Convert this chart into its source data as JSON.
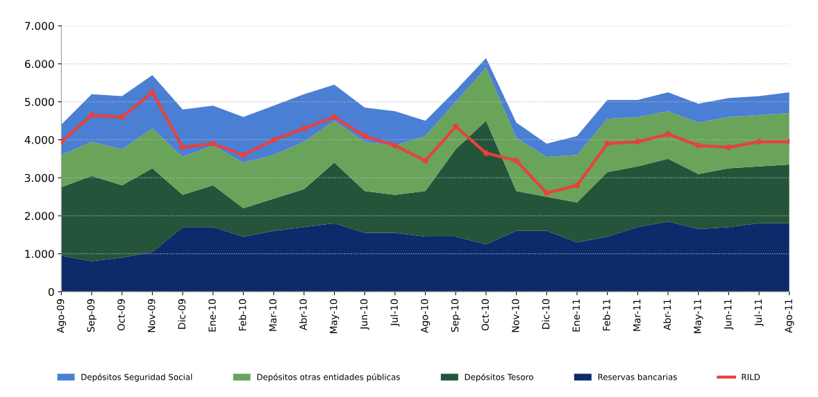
{
  "chart_data": {
    "type": "area",
    "stacked": true,
    "grid": "y",
    "legend": "bottom",
    "categories": [
      "Ago-09",
      "Sep-09",
      "Oct-09",
      "Nov-09",
      "Dic-09",
      "Ene-10",
      "Feb-10",
      "Mar-10",
      "Abr-10",
      "May-10",
      "Jun-10",
      "Jul-10",
      "Ago-10",
      "Sep-10",
      "Oct-10",
      "Nov-10",
      "Dic-10",
      "Ene-11",
      "Feb-11",
      "Mar-11",
      "Abr-11",
      "May-11",
      "Jun-11",
      "Jul-11",
      "Ago-11"
    ],
    "ylim": [
      0,
      7000
    ],
    "yticks": [
      {
        "value": 0,
        "label": "0"
      },
      {
        "value": 1000,
        "label": "1.000"
      },
      {
        "value": 2000,
        "label": "2.000"
      },
      {
        "value": 3000,
        "label": "3.000"
      },
      {
        "value": 4000,
        "label": "4.000"
      },
      {
        "value": 5000,
        "label": "5.000"
      },
      {
        "value": 6000,
        "label": "6.000"
      },
      {
        "value": 7000,
        "label": "7.000"
      }
    ],
    "series": [
      {
        "name": "Reservas bancarias",
        "color": "#0d2a6b",
        "values": [
          950,
          800,
          900,
          1050,
          1700,
          1700,
          1450,
          1600,
          1700,
          1800,
          1550,
          1550,
          1450,
          1450,
          1250,
          1600,
          1600,
          1300,
          1450,
          1700,
          1850,
          1650,
          1700,
          1800,
          1800
        ]
      },
      {
        "name": "Depósitos Tesoro",
        "color": "#24543a",
        "values": [
          1800,
          2250,
          1900,
          2200,
          850,
          1100,
          750,
          850,
          1000,
          1600,
          1100,
          1000,
          1200,
          2300,
          3250,
          1050,
          900,
          1050,
          1700,
          1600,
          1650,
          1450,
          1550,
          1500,
          1550
        ]
      },
      {
        "name": "Depósitos otras entidades públicas",
        "color": "#6aa35a",
        "values": [
          850,
          900,
          950,
          1050,
          1000,
          1050,
          1200,
          1150,
          1250,
          1100,
          1300,
          1300,
          1450,
          1250,
          1400,
          1400,
          1050,
          1250,
          1400,
          1300,
          1250,
          1350,
          1350,
          1350,
          1350
        ]
      },
      {
        "name": "Depósitos Seguridad Social",
        "color": "#4a7fd4",
        "values": [
          800,
          1250,
          1400,
          1400,
          1250,
          1050,
          1200,
          1300,
          1250,
          950,
          900,
          900,
          400,
          300,
          250,
          400,
          350,
          500,
          500,
          450,
          500,
          500,
          500,
          500,
          550
        ]
      },
      {
        "name": "RILD",
        "type": "line",
        "marker": "circle",
        "color": "#e8413c",
        "values": [
          3950,
          4650,
          4600,
          5250,
          3800,
          3900,
          3600,
          4000,
          4300,
          4600,
          4100,
          3850,
          3450,
          4350,
          3650,
          3450,
          2600,
          2800,
          3900,
          3950,
          4150,
          3850,
          3800,
          3950,
          3950
        ]
      }
    ]
  }
}
